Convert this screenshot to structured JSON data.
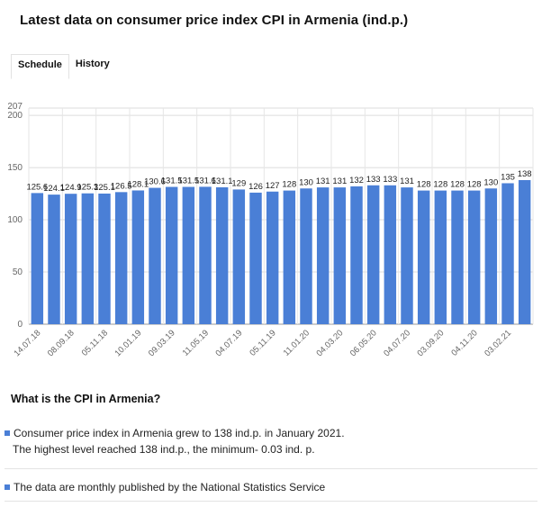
{
  "page": {
    "title": "Latest data on consumer price index CPI in Armenia (ind.p.)"
  },
  "tabs": [
    {
      "label": "Schedule",
      "active": true
    },
    {
      "label": "History",
      "active": false
    }
  ],
  "info": {
    "heading": "What is the CPI in Armenia?",
    "line1": "Consumer price index in Armenia grew to 138 ind.p. in January 2021.",
    "line2": "The highest level reached 138 ind.p., the minimum- 0.03 ind. p.",
    "line3": "The data are monthly published by the National Statistics Service"
  },
  "chart_data": {
    "type": "bar",
    "bar_color": "#4a7fd6",
    "ylim": [
      0,
      207
    ],
    "yticks": [
      0,
      50,
      100,
      150,
      200
    ],
    "ymax_label": "207",
    "grid": true,
    "legend": "none",
    "x_tick_labels": [
      "14.07.18",
      "08.09.18",
      "05.11.18",
      "10.01.19",
      "09.03.19",
      "11.05.19",
      "04.07.19",
      "05.11.19",
      "11.01.20",
      "04.03.20",
      "06.05.20",
      "04.07.20",
      "03.09.20",
      "04.11.20",
      "03.02.21"
    ],
    "value_labels": [
      "125.6",
      "124.1",
      "124.9",
      "125.3",
      "125.1",
      "126.5",
      "128.1",
      "130.6",
      "131.5",
      "131.5",
      "131.6",
      "131.1",
      "129",
      "126",
      "127",
      "128",
      "130",
      "131",
      "131",
      "132",
      "133",
      "133",
      "131",
      "128",
      "128",
      "128",
      "128",
      "130",
      "135",
      "138"
    ],
    "values": [
      125.6,
      124.1,
      124.9,
      125.3,
      125.1,
      126.5,
      128.1,
      130.6,
      131.5,
      131.5,
      131.6,
      131.1,
      129,
      126,
      127,
      128,
      130,
      131,
      131,
      132,
      133,
      133,
      131,
      128,
      128,
      128,
      128,
      130,
      135,
      138
    ]
  }
}
